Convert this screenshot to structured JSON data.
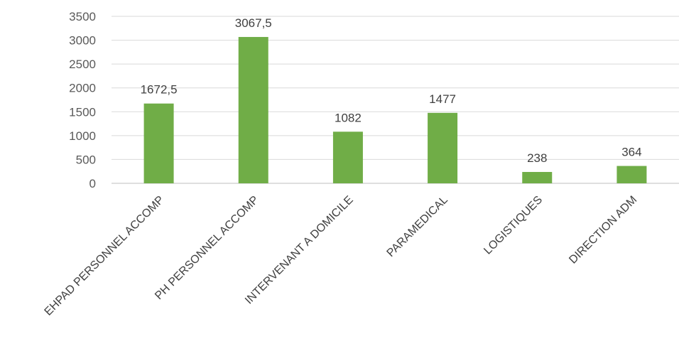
{
  "chart_data": {
    "type": "bar",
    "title": "",
    "xlabel": "",
    "ylabel": "",
    "categories": [
      "EHPAD PERSONNEL ACCOMP",
      "PH PERSONNEL ACCOMP",
      "INTERVENANT A DOMICILE",
      "PARAMEDICAL",
      "LOGISTIQUES",
      "DIRECTION ADM"
    ],
    "values": [
      1672.5,
      3067.5,
      1082,
      1477,
      238,
      364
    ],
    "data_labels": [
      "1672,5",
      "3067,5",
      "1082",
      "1477",
      "238",
      "364"
    ],
    "ylim": [
      0,
      3500
    ],
    "yticks": [
      0,
      500,
      1000,
      1500,
      2000,
      2500,
      3000,
      3500
    ],
    "grid": true,
    "legend": "none",
    "bar_color": "#70ad47"
  }
}
